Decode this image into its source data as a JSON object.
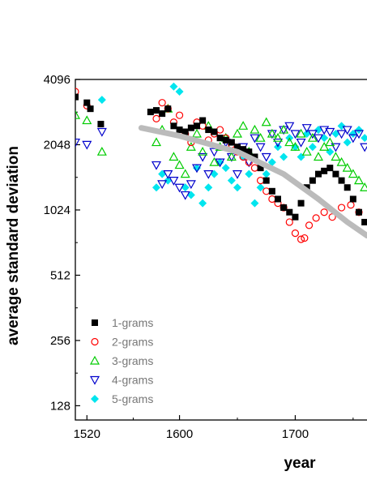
{
  "chart_data": {
    "type": "scatter",
    "title": "",
    "xlabel": "year",
    "ylabel": "average standard deviation",
    "x_ticks": [
      1520,
      1600,
      1700
    ],
    "y_ticks": [
      128,
      256,
      512,
      1024,
      2048,
      4096
    ],
    "x_tick_labels": [
      "1520",
      "1600",
      "1700"
    ],
    "y_tick_labels": [
      "128",
      "256",
      "512",
      "1024",
      "2048",
      "4096"
    ],
    "xlim": [
      1510,
      1762
    ],
    "ylim": [
      110,
      4096
    ],
    "y_scale": "log2",
    "grid": false,
    "legend_position": "bottom-left",
    "trend_line": {
      "color": "#bbbbbb",
      "points": [
        [
          1567,
          2450
        ],
        [
          1600,
          2250
        ],
        [
          1650,
          1900
        ],
        [
          1690,
          1500
        ],
        [
          1720,
          1150
        ],
        [
          1745,
          900
        ],
        [
          1762,
          780
        ]
      ]
    },
    "series": [
      {
        "name": "1-grams",
        "marker": "square",
        "color": "#000000",
        "points": [
          [
            1510,
            3400
          ],
          [
            1520,
            3200
          ],
          [
            1523,
            3000
          ],
          [
            1532,
            2550
          ],
          [
            1575,
            2900
          ],
          [
            1580,
            2950
          ],
          [
            1585,
            2850
          ],
          [
            1590,
            3000
          ],
          [
            1595,
            2500
          ],
          [
            1600,
            2400
          ],
          [
            1605,
            2350
          ],
          [
            1610,
            2450
          ],
          [
            1615,
            2500
          ],
          [
            1620,
            2650
          ],
          [
            1625,
            2400
          ],
          [
            1630,
            2350
          ],
          [
            1635,
            2200
          ],
          [
            1640,
            2150
          ],
          [
            1645,
            2100
          ],
          [
            1650,
            2000
          ],
          [
            1655,
            1950
          ],
          [
            1660,
            1900
          ],
          [
            1665,
            1800
          ],
          [
            1670,
            1600
          ],
          [
            1675,
            1400
          ],
          [
            1680,
            1250
          ],
          [
            1685,
            1150
          ],
          [
            1690,
            1050
          ],
          [
            1695,
            1000
          ],
          [
            1700,
            950
          ],
          [
            1705,
            1100
          ],
          [
            1710,
            1300
          ],
          [
            1715,
            1400
          ],
          [
            1720,
            1500
          ],
          [
            1725,
            1550
          ],
          [
            1730,
            1600
          ],
          [
            1735,
            1500
          ],
          [
            1740,
            1400
          ],
          [
            1745,
            1300
          ],
          [
            1750,
            1150
          ],
          [
            1755,
            1000
          ],
          [
            1760,
            900
          ]
        ]
      },
      {
        "name": "2-grams",
        "marker": "circle",
        "color": "#ff0000",
        "points": [
          [
            1510,
            3600
          ],
          [
            1520,
            3100
          ],
          [
            1580,
            2700
          ],
          [
            1585,
            3200
          ],
          [
            1590,
            3000
          ],
          [
            1595,
            2600
          ],
          [
            1600,
            2800
          ],
          [
            1605,
            2300
          ],
          [
            1610,
            2100
          ],
          [
            1615,
            2600
          ],
          [
            1620,
            2500
          ],
          [
            1625,
            2150
          ],
          [
            1630,
            2300
          ],
          [
            1635,
            2400
          ],
          [
            1640,
            2200
          ],
          [
            1645,
            2050
          ],
          [
            1650,
            1900
          ],
          [
            1655,
            1800
          ],
          [
            1660,
            1700
          ],
          [
            1665,
            1600
          ],
          [
            1670,
            1400
          ],
          [
            1675,
            1250
          ],
          [
            1680,
            1150
          ],
          [
            1685,
            1100
          ],
          [
            1690,
            1050
          ],
          [
            1695,
            900
          ],
          [
            1700,
            800
          ],
          [
            1705,
            750
          ],
          [
            1708,
            760
          ],
          [
            1712,
            870
          ],
          [
            1718,
            940
          ],
          [
            1725,
            1000
          ],
          [
            1732,
            950
          ],
          [
            1740,
            1050
          ],
          [
            1748,
            1080
          ],
          [
            1755,
            1000
          ]
        ]
      },
      {
        "name": "3-grams",
        "marker": "triangle-up",
        "color": "#00cc00",
        "points": [
          [
            1510,
            2800
          ],
          [
            1520,
            2650
          ],
          [
            1533,
            1900
          ],
          [
            1580,
            2100
          ],
          [
            1585,
            2400
          ],
          [
            1590,
            3000
          ],
          [
            1595,
            1800
          ],
          [
            1600,
            1650
          ],
          [
            1605,
            1500
          ],
          [
            1610,
            2000
          ],
          [
            1615,
            2300
          ],
          [
            1620,
            1900
          ],
          [
            1625,
            2500
          ],
          [
            1630,
            1700
          ],
          [
            1635,
            2000
          ],
          [
            1640,
            2200
          ],
          [
            1645,
            1800
          ],
          [
            1650,
            2300
          ],
          [
            1655,
            2500
          ],
          [
            1660,
            1900
          ],
          [
            1665,
            2400
          ],
          [
            1670,
            2200
          ],
          [
            1675,
            2600
          ],
          [
            1680,
            2300
          ],
          [
            1685,
            2200
          ],
          [
            1690,
            2400
          ],
          [
            1695,
            2100
          ],
          [
            1700,
            2000
          ],
          [
            1705,
            2300
          ],
          [
            1710,
            1900
          ],
          [
            1715,
            2200
          ],
          [
            1720,
            1800
          ],
          [
            1725,
            2000
          ],
          [
            1730,
            2100
          ],
          [
            1735,
            1800
          ],
          [
            1740,
            1700
          ],
          [
            1745,
            1600
          ],
          [
            1750,
            1500
          ],
          [
            1755,
            1400
          ],
          [
            1760,
            1300
          ]
        ]
      },
      {
        "name": "4-grams",
        "marker": "triangle-down",
        "color": "#0000cc",
        "points": [
          [
            1510,
            2100
          ],
          [
            1520,
            2050
          ],
          [
            1533,
            2350
          ],
          [
            1580,
            1650
          ],
          [
            1585,
            1350
          ],
          [
            1590,
            1500
          ],
          [
            1595,
            1400
          ],
          [
            1600,
            1300
          ],
          [
            1605,
            1200
          ],
          [
            1610,
            1350
          ],
          [
            1615,
            1600
          ],
          [
            1620,
            1800
          ],
          [
            1625,
            1500
          ],
          [
            1630,
            1900
          ],
          [
            1635,
            1700
          ],
          [
            1640,
            2100
          ],
          [
            1645,
            1800
          ],
          [
            1650,
            1500
          ],
          [
            1655,
            2000
          ],
          [
            1660,
            1700
          ],
          [
            1665,
            2200
          ],
          [
            1670,
            2000
          ],
          [
            1675,
            1800
          ],
          [
            1680,
            2300
          ],
          [
            1685,
            2100
          ],
          [
            1690,
            2400
          ],
          [
            1695,
            2500
          ],
          [
            1700,
            2300
          ],
          [
            1705,
            2100
          ],
          [
            1710,
            2450
          ],
          [
            1715,
            2300
          ],
          [
            1720,
            2200
          ],
          [
            1725,
            2400
          ],
          [
            1730,
            2350
          ],
          [
            1735,
            2000
          ],
          [
            1740,
            2300
          ],
          [
            1745,
            2400
          ],
          [
            1750,
            2200
          ],
          [
            1755,
            2300
          ],
          [
            1760,
            2000
          ]
        ]
      },
      {
        "name": "5-grams",
        "marker": "diamond",
        "color": "#00e5ee",
        "points": [
          [
            1533,
            3300
          ],
          [
            1580,
            1300
          ],
          [
            1585,
            1500
          ],
          [
            1590,
            1400
          ],
          [
            1595,
            3800
          ],
          [
            1600,
            3600
          ],
          [
            1605,
            1300
          ],
          [
            1610,
            1200
          ],
          [
            1615,
            1600
          ],
          [
            1620,
            1100
          ],
          [
            1625,
            1300
          ],
          [
            1630,
            1500
          ],
          [
            1635,
            1700
          ],
          [
            1640,
            1600
          ],
          [
            1645,
            1400
          ],
          [
            1650,
            1300
          ],
          [
            1655,
            1800
          ],
          [
            1660,
            1500
          ],
          [
            1665,
            1100
          ],
          [
            1670,
            1300
          ],
          [
            1675,
            1500
          ],
          [
            1680,
            1700
          ],
          [
            1685,
            2000
          ],
          [
            1690,
            1800
          ],
          [
            1695,
            2200
          ],
          [
            1700,
            2000
          ],
          [
            1705,
            1800
          ],
          [
            1710,
            2300
          ],
          [
            1715,
            2000
          ],
          [
            1720,
            2400
          ],
          [
            1725,
            2200
          ],
          [
            1730,
            1900
          ],
          [
            1735,
            2300
          ],
          [
            1740,
            2500
          ],
          [
            1745,
            2100
          ],
          [
            1750,
            2300
          ],
          [
            1755,
            2400
          ],
          [
            1760,
            2200
          ]
        ]
      }
    ]
  }
}
